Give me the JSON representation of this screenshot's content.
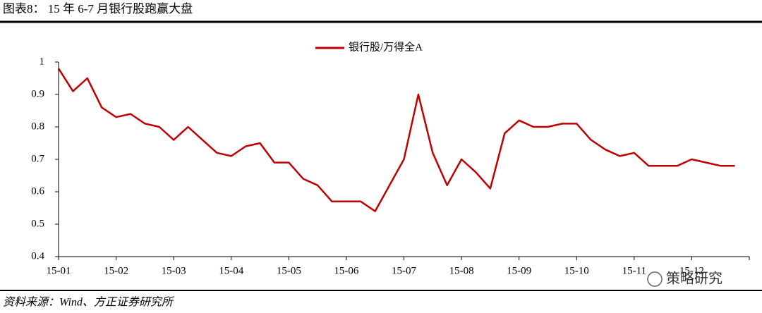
{
  "chart_data": {
    "type": "line",
    "title": "图表8：  15 年 6-7 月银行股跑赢大盘",
    "source": "资料来源：Wind、方正证券研究所",
    "watermark": "策略研究",
    "categories": [
      "15-01",
      null,
      null,
      null,
      "15-02",
      null,
      null,
      null,
      "15-03",
      null,
      null,
      null,
      "15-04",
      null,
      null,
      null,
      "15-05",
      null,
      null,
      null,
      "15-06",
      null,
      null,
      null,
      "15-07",
      null,
      null,
      null,
      "15-08",
      null,
      null,
      null,
      "15-09",
      null,
      null,
      null,
      "15-10",
      null,
      null,
      null,
      "15-11",
      null,
      null,
      null,
      "15-12",
      null,
      null,
      null
    ],
    "series": [
      {
        "name": "银行股/万得全A",
        "color": "#c00000",
        "values": [
          0.98,
          0.91,
          0.95,
          0.86,
          0.83,
          0.84,
          0.81,
          0.8,
          0.76,
          0.8,
          0.76,
          0.72,
          0.71,
          0.74,
          0.75,
          0.69,
          0.69,
          0.64,
          0.62,
          0.57,
          0.57,
          0.57,
          0.54,
          0.62,
          0.7,
          0.9,
          0.72,
          0.62,
          0.7,
          0.66,
          0.61,
          0.78,
          0.82,
          0.8,
          0.8,
          0.81,
          0.81,
          0.76,
          0.73,
          0.71,
          0.72,
          0.68,
          0.68,
          0.68,
          0.7,
          0.69,
          0.68,
          0.68
        ]
      }
    ],
    "ylim": [
      0.4,
      1
    ],
    "yticks": [
      0.4,
      0.5,
      0.6,
      0.7,
      0.8,
      0.9,
      1
    ],
    "legend": "top"
  }
}
